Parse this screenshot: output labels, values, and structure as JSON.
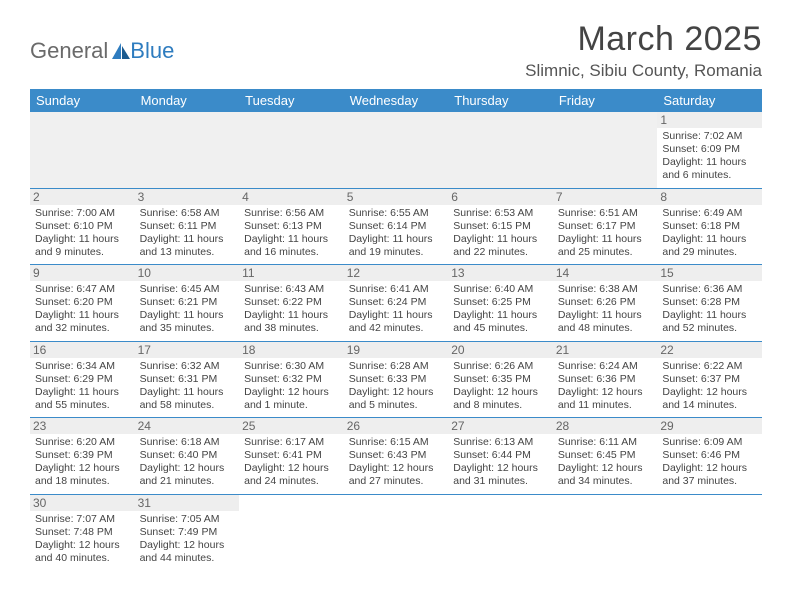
{
  "logo": {
    "text1": "General",
    "text2": "Blue"
  },
  "title": "March 2025",
  "location": "Slimnic, Sibiu County, Romania",
  "header_bg": "#3b8bc9",
  "header_fg": "#ffffff",
  "divider_color": "#3b8bc9",
  "daynum_bg": "#eeeeee",
  "text_color": "#444444",
  "page_bg": "#ffffff",
  "columns": [
    "Sunday",
    "Monday",
    "Tuesday",
    "Wednesday",
    "Thursday",
    "Friday",
    "Saturday"
  ],
  "weeks": [
    [
      null,
      null,
      null,
      null,
      null,
      null,
      {
        "n": "1",
        "sunrise": "7:02 AM",
        "sunset": "6:09 PM",
        "daylight": "11 hours and 6 minutes."
      }
    ],
    [
      {
        "n": "2",
        "sunrise": "7:00 AM",
        "sunset": "6:10 PM",
        "daylight": "11 hours and 9 minutes."
      },
      {
        "n": "3",
        "sunrise": "6:58 AM",
        "sunset": "6:11 PM",
        "daylight": "11 hours and 13 minutes."
      },
      {
        "n": "4",
        "sunrise": "6:56 AM",
        "sunset": "6:13 PM",
        "daylight": "11 hours and 16 minutes."
      },
      {
        "n": "5",
        "sunrise": "6:55 AM",
        "sunset": "6:14 PM",
        "daylight": "11 hours and 19 minutes."
      },
      {
        "n": "6",
        "sunrise": "6:53 AM",
        "sunset": "6:15 PM",
        "daylight": "11 hours and 22 minutes."
      },
      {
        "n": "7",
        "sunrise": "6:51 AM",
        "sunset": "6:17 PM",
        "daylight": "11 hours and 25 minutes."
      },
      {
        "n": "8",
        "sunrise": "6:49 AM",
        "sunset": "6:18 PM",
        "daylight": "11 hours and 29 minutes."
      }
    ],
    [
      {
        "n": "9",
        "sunrise": "6:47 AM",
        "sunset": "6:20 PM",
        "daylight": "11 hours and 32 minutes."
      },
      {
        "n": "10",
        "sunrise": "6:45 AM",
        "sunset": "6:21 PM",
        "daylight": "11 hours and 35 minutes."
      },
      {
        "n": "11",
        "sunrise": "6:43 AM",
        "sunset": "6:22 PM",
        "daylight": "11 hours and 38 minutes."
      },
      {
        "n": "12",
        "sunrise": "6:41 AM",
        "sunset": "6:24 PM",
        "daylight": "11 hours and 42 minutes."
      },
      {
        "n": "13",
        "sunrise": "6:40 AM",
        "sunset": "6:25 PM",
        "daylight": "11 hours and 45 minutes."
      },
      {
        "n": "14",
        "sunrise": "6:38 AM",
        "sunset": "6:26 PM",
        "daylight": "11 hours and 48 minutes."
      },
      {
        "n": "15",
        "sunrise": "6:36 AM",
        "sunset": "6:28 PM",
        "daylight": "11 hours and 52 minutes."
      }
    ],
    [
      {
        "n": "16",
        "sunrise": "6:34 AM",
        "sunset": "6:29 PM",
        "daylight": "11 hours and 55 minutes."
      },
      {
        "n": "17",
        "sunrise": "6:32 AM",
        "sunset": "6:31 PM",
        "daylight": "11 hours and 58 minutes."
      },
      {
        "n": "18",
        "sunrise": "6:30 AM",
        "sunset": "6:32 PM",
        "daylight": "12 hours and 1 minute."
      },
      {
        "n": "19",
        "sunrise": "6:28 AM",
        "sunset": "6:33 PM",
        "daylight": "12 hours and 5 minutes."
      },
      {
        "n": "20",
        "sunrise": "6:26 AM",
        "sunset": "6:35 PM",
        "daylight": "12 hours and 8 minutes."
      },
      {
        "n": "21",
        "sunrise": "6:24 AM",
        "sunset": "6:36 PM",
        "daylight": "12 hours and 11 minutes."
      },
      {
        "n": "22",
        "sunrise": "6:22 AM",
        "sunset": "6:37 PM",
        "daylight": "12 hours and 14 minutes."
      }
    ],
    [
      {
        "n": "23",
        "sunrise": "6:20 AM",
        "sunset": "6:39 PM",
        "daylight": "12 hours and 18 minutes."
      },
      {
        "n": "24",
        "sunrise": "6:18 AM",
        "sunset": "6:40 PM",
        "daylight": "12 hours and 21 minutes."
      },
      {
        "n": "25",
        "sunrise": "6:17 AM",
        "sunset": "6:41 PM",
        "daylight": "12 hours and 24 minutes."
      },
      {
        "n": "26",
        "sunrise": "6:15 AM",
        "sunset": "6:43 PM",
        "daylight": "12 hours and 27 minutes."
      },
      {
        "n": "27",
        "sunrise": "6:13 AM",
        "sunset": "6:44 PM",
        "daylight": "12 hours and 31 minutes."
      },
      {
        "n": "28",
        "sunrise": "6:11 AM",
        "sunset": "6:45 PM",
        "daylight": "12 hours and 34 minutes."
      },
      {
        "n": "29",
        "sunrise": "6:09 AM",
        "sunset": "6:46 PM",
        "daylight": "12 hours and 37 minutes."
      }
    ],
    [
      {
        "n": "30",
        "sunrise": "7:07 AM",
        "sunset": "7:48 PM",
        "daylight": "12 hours and 40 minutes."
      },
      {
        "n": "31",
        "sunrise": "7:05 AM",
        "sunset": "7:49 PM",
        "daylight": "12 hours and 44 minutes."
      },
      null,
      null,
      null,
      null,
      null
    ]
  ],
  "labels": {
    "sunrise_prefix": "Sunrise: ",
    "sunset_prefix": "Sunset: ",
    "daylight_prefix": "Daylight: "
  }
}
